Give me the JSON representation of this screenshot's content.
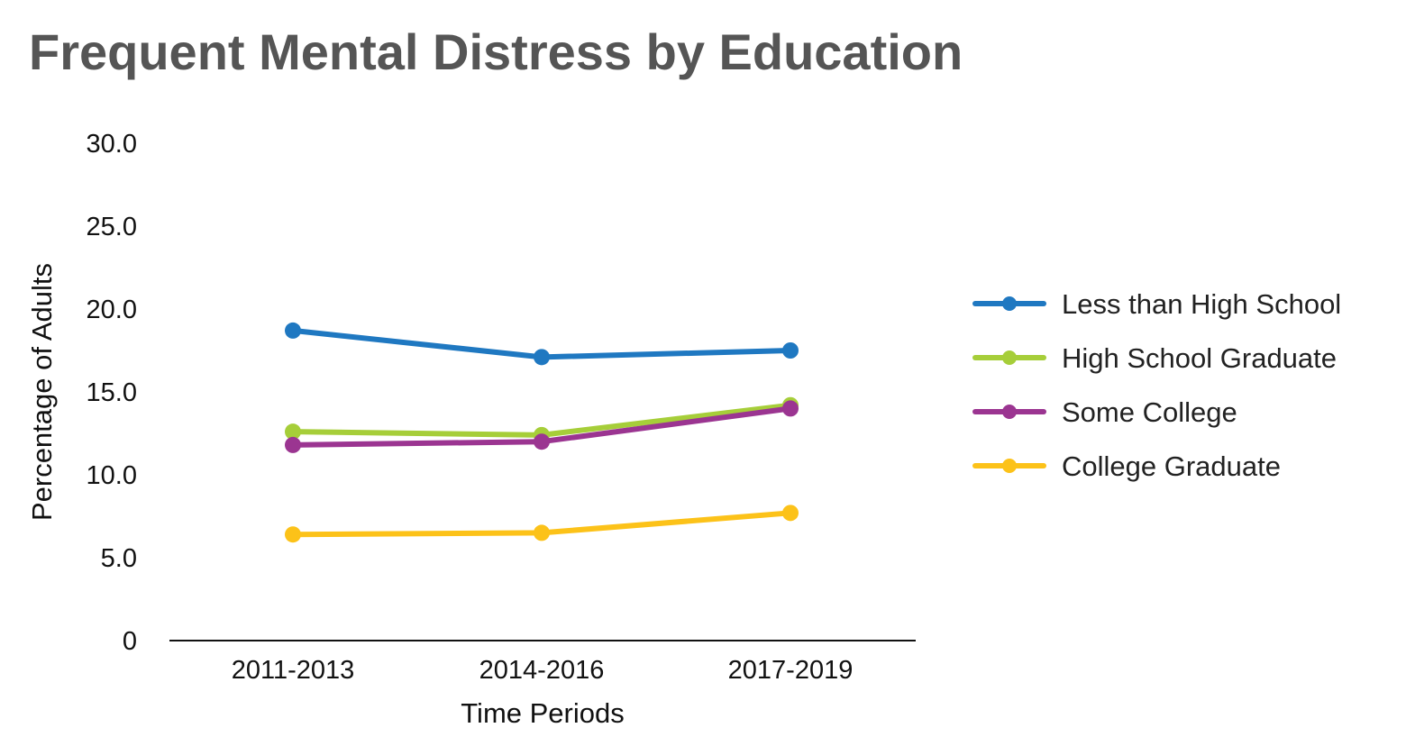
{
  "chart_data": {
    "type": "line",
    "title": "Frequent Mental Distress by Education",
    "xlabel": "Time Periods",
    "ylabel": "Percentage of Adults",
    "categories": [
      "2011-2013",
      "2014-2016",
      "2017-2019"
    ],
    "ylim": [
      0,
      30
    ],
    "yticks": [
      0,
      5,
      10,
      15,
      20,
      25,
      30
    ],
    "ytick_labels": [
      "0",
      "5.0",
      "10.0",
      "15.0",
      "20.0",
      "25.0",
      "30.0"
    ],
    "grid": false,
    "legend_position": "right",
    "series": [
      {
        "name": "Less than High School",
        "color": "#1f78c1",
        "values": [
          18.7,
          17.1,
          17.5
        ]
      },
      {
        "name": "High School Graduate",
        "color": "#a6ce39",
        "values": [
          12.6,
          12.4,
          14.2
        ]
      },
      {
        "name": "Some College",
        "color": "#9b3591",
        "values": [
          11.8,
          12.0,
          14.0
        ]
      },
      {
        "name": "College Graduate",
        "color": "#fcc219",
        "values": [
          6.4,
          6.5,
          7.7
        ]
      }
    ]
  }
}
